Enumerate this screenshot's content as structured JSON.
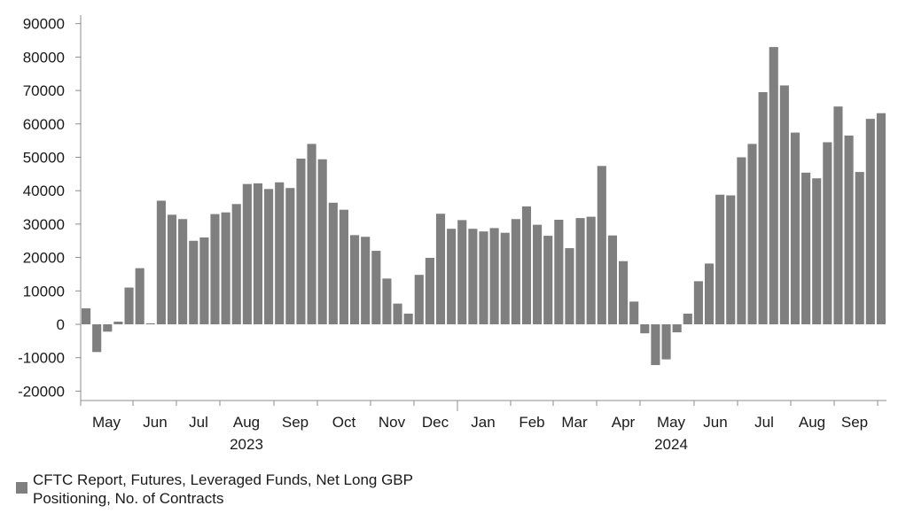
{
  "chart_data": {
    "type": "bar",
    "title": "",
    "xlabel": "",
    "ylabel": "",
    "ylim": [
      -25000,
      95000
    ],
    "yticks": [
      90000,
      80000,
      70000,
      60000,
      50000,
      40000,
      30000,
      20000,
      10000,
      0,
      -10000,
      -20000
    ],
    "color": "#7f7f7f",
    "month_labels": [
      "May",
      "Jun",
      "Jul",
      "Aug",
      "Sep",
      "Oct",
      "Nov",
      "Dec",
      "Jan",
      "Feb",
      "Mar",
      "Apr",
      "May",
      "Jun",
      "Jul",
      "Aug",
      "Sep"
    ],
    "year_labels": [
      "2023",
      "2024"
    ],
    "series": [
      {
        "name": "CFTC Report, Futures, Leveraged Funds, Net Long GBP Positioning, No. of Contracts",
        "values": [
          4800,
          -8300,
          -2200,
          800,
          11000,
          16800,
          300,
          37000,
          32800,
          31500,
          25000,
          26000,
          33000,
          33500,
          36000,
          42000,
          42200,
          40500,
          42500,
          40800,
          49600,
          54000,
          49400,
          36400,
          34300,
          26700,
          26200,
          22000,
          13700,
          6200,
          3200,
          14800,
          19900,
          33100,
          28600,
          31200,
          28600,
          27800,
          28800,
          27400,
          31500,
          35300,
          29800,
          26500,
          31300,
          22800,
          31800,
          32200,
          47400,
          26600,
          18900,
          6800,
          -2700,
          -12200,
          -10500,
          -2400,
          3200,
          12900,
          18200,
          38800,
          38600,
          50000,
          54000,
          69500,
          83000,
          71500,
          57400,
          45400,
          43700,
          54500,
          65200,
          56500,
          45600,
          61500,
          63200
        ]
      }
    ]
  },
  "legend": {
    "label": "CFTC Report, Futures, Leveraged Funds, Net Long GBP Positioning, No. of Contracts"
  }
}
